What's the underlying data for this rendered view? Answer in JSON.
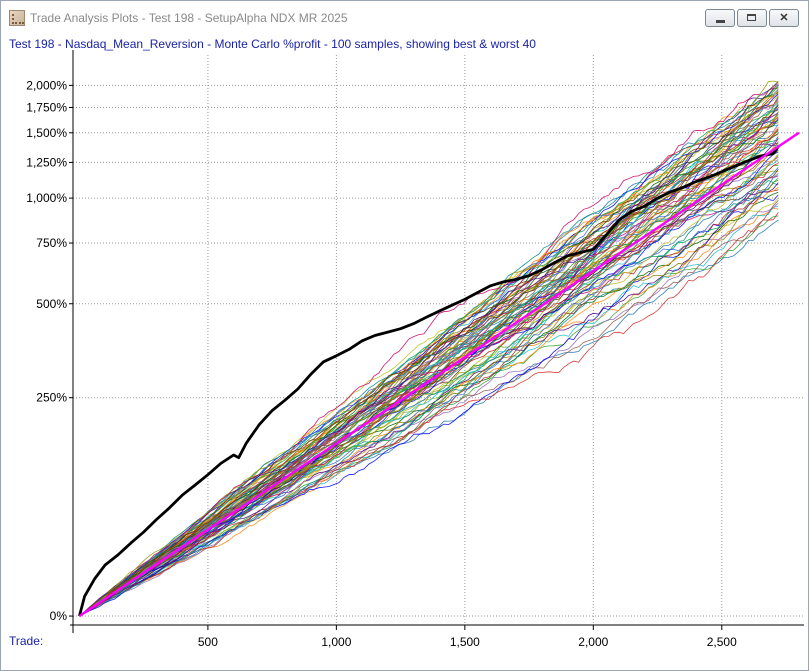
{
  "window": {
    "title": "Trade Analysis Plots - Test 198 - SetupAlpha NDX MR 2025",
    "app_icon": "chart-app-icon",
    "buttons": [
      "minimize-icon",
      "maximize-icon",
      "close-icon"
    ]
  },
  "chart_data": {
    "type": "line",
    "title": "Test 198 - Nasdaq_Mean_Reversion - Monte Carlo %profit - 100 samples, showing best & worst 40",
    "x_prefix_label": "Trade:",
    "xlabel": "",
    "ylabel": "",
    "xlim": [
      -25,
      2820
    ],
    "ylim": [
      -5,
      2400
    ],
    "y_scale": "log(1 + y/100)",
    "grid": true,
    "legend": "none",
    "x_ticks": [
      500,
      1000,
      1500,
      2000,
      2500
    ],
    "x_tick_labels": [
      "500",
      "1,000",
      "1,500",
      "2,000",
      "2,500"
    ],
    "y_ticks": [
      0,
      250,
      500,
      750,
      1000,
      1250,
      1500,
      1750,
      2000
    ],
    "y_tick_labels": [
      "0%",
      "250%",
      "500%",
      "750%",
      "1,000%",
      "1,250%",
      "1,500%",
      "1,750%",
      "2,000%"
    ],
    "series": [
      {
        "role": "actual",
        "color": "#000000",
        "x": [
          0,
          20,
          60,
          100,
          150,
          200,
          250,
          300,
          350,
          400,
          450,
          500,
          550,
          600,
          620,
          650,
          700,
          750,
          800,
          850,
          900,
          950,
          1000,
          1050,
          1100,
          1150,
          1200,
          1250,
          1300,
          1350,
          1400,
          1450,
          1500,
          1550,
          1600,
          1650,
          1700,
          1750,
          1800,
          1850,
          1900,
          1950,
          2000,
          2050,
          2100,
          2150,
          2200,
          2250,
          2300,
          2350,
          2400,
          2450,
          2500,
          2550,
          2600,
          2650,
          2700,
          2720
        ],
        "y": [
          0,
          12,
          24,
          34,
          42,
          52,
          62,
          74,
          86,
          100,
          112,
          125,
          140,
          152,
          148,
          170,
          200,
          225,
          245,
          268,
          300,
          330,
          345,
          362,
          385,
          400,
          410,
          420,
          435,
          455,
          475,
          495,
          515,
          540,
          565,
          580,
          590,
          605,
          630,
          660,
          690,
          705,
          720,
          790,
          870,
          920,
          950,
          1000,
          1040,
          1070,
          1110,
          1140,
          1180,
          1220,
          1260,
          1300,
          1320,
          1380
        ]
      },
      {
        "role": "mean",
        "color": "#ff00ff",
        "x": [
          0,
          2800
        ],
        "y": [
          0,
          1500
        ]
      }
    ],
    "monte_carlo_samples": {
      "count": 100,
      "shown": 80,
      "x_range": [
        0,
        2720
      ],
      "final_y_range": [
        870,
        2050
      ],
      "colors": [
        "#1f77b4",
        "#2ca02c",
        "#d62728",
        "#ff7f0e",
        "#17becf",
        "#9467bd",
        "#8c564b",
        "#bcbd22",
        "#0000ff",
        "#006400",
        "#b22222",
        "#ff8c00",
        "#008b8b",
        "#4b0082",
        "#808000",
        "#00aa55",
        "#cc0066",
        "#3366cc",
        "#999900",
        "#663300"
      ]
    }
  }
}
